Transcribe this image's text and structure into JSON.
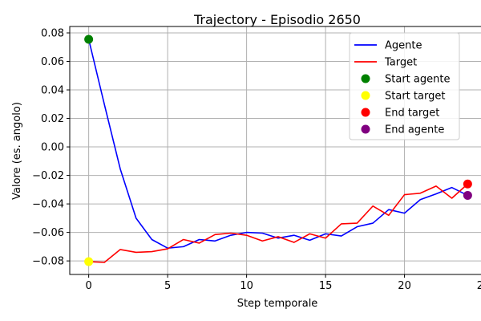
{
  "chart_data": {
    "type": "line",
    "title": "Trajectory - Episodio 2650",
    "xlabel": "Step temporale",
    "ylabel": "Valore (es. angolo)",
    "xlim": [
      -1.2,
      25.2
    ],
    "ylim": [
      -0.0895,
      0.0845
    ],
    "xticks": [
      0,
      5,
      10,
      15,
      20,
      25
    ],
    "xtick_labels": [
      "0",
      "5",
      "10",
      "15",
      "20",
      "25"
    ],
    "yticks": [
      -0.08,
      -0.06,
      -0.04,
      -0.02,
      0.0,
      0.02,
      0.04,
      0.06,
      0.08
    ],
    "ytick_labels": [
      "−0.08",
      "−0.06",
      "−0.04",
      "−0.02",
      "0.00",
      "0.02",
      "0.04",
      "0.06",
      "0.08"
    ],
    "grid": true,
    "legend_position": "top-right",
    "x": [
      0,
      1,
      2,
      3,
      4,
      5,
      6,
      7,
      8,
      9,
      10,
      11,
      12,
      13,
      14,
      15,
      16,
      17,
      18,
      19,
      20,
      21,
      22,
      23,
      24
    ],
    "series": [
      {
        "name": "Agente",
        "color": "#0000ff",
        "values": [
          0.0755,
          0.0295,
          -0.0155,
          -0.05,
          -0.065,
          -0.071,
          -0.07,
          -0.065,
          -0.066,
          -0.062,
          -0.06,
          -0.0605,
          -0.064,
          -0.062,
          -0.0655,
          -0.061,
          -0.0625,
          -0.056,
          -0.0535,
          -0.044,
          -0.0465,
          -0.037,
          -0.033,
          -0.0285,
          -0.034
        ]
      },
      {
        "name": "Target",
        "color": "#ff0000",
        "values": [
          -0.0805,
          -0.081,
          -0.072,
          -0.074,
          -0.0735,
          -0.0715,
          -0.065,
          -0.0675,
          -0.0615,
          -0.0605,
          -0.062,
          -0.066,
          -0.063,
          -0.067,
          -0.061,
          -0.064,
          -0.054,
          -0.0535,
          -0.0415,
          -0.048,
          -0.0335,
          -0.0325,
          -0.0275,
          -0.036,
          -0.026
        ]
      }
    ],
    "markers": [
      {
        "name": "Start agente",
        "x": 0,
        "y": 0.0755,
        "color": "#008000"
      },
      {
        "name": "Start target",
        "x": 0,
        "y": -0.0805,
        "color": "#ffff00"
      },
      {
        "name": "End target",
        "x": 24,
        "y": -0.026,
        "color": "#ff0000"
      },
      {
        "name": "End agente",
        "x": 24,
        "y": -0.034,
        "color": "#800080"
      }
    ]
  }
}
